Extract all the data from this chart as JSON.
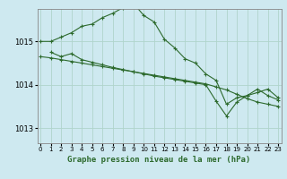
{
  "title": "Graphe pression niveau de la mer (hPa)",
  "bg_color": "#cee9f0",
  "grid_color": "#b0d4cc",
  "line_color": "#2d6a2d",
  "x_ticks": [
    0,
    1,
    2,
    3,
    4,
    5,
    6,
    7,
    8,
    9,
    10,
    11,
    12,
    13,
    14,
    15,
    16,
    17,
    18,
    19,
    20,
    21,
    22,
    23
  ],
  "y_ticks": [
    1013,
    1014,
    1015
  ],
  "ylim": [
    1012.65,
    1015.75
  ],
  "xlim": [
    -0.3,
    23.3
  ],
  "series": [
    {
      "x": [
        0,
        1,
        2,
        3,
        4,
        5,
        6,
        7,
        8,
        9,
        10,
        11,
        12,
        13,
        14,
        15,
        16,
        17,
        18,
        19,
        20,
        21,
        22,
        23
      ],
      "y": [
        1015.0,
        1015.0,
        1015.1,
        1015.2,
        1015.35,
        1015.4,
        1015.55,
        1015.65,
        1015.78,
        1015.88,
        1015.6,
        1015.45,
        1015.05,
        1014.85,
        1014.6,
        1014.5,
        1014.25,
        1014.1,
        1013.55,
        1013.7,
        1013.75,
        1013.9,
        1013.75,
        1013.65
      ]
    },
    {
      "x": [
        0,
        1,
        2,
        3,
        4,
        5,
        6,
        7,
        8,
        9,
        10,
        11,
        12,
        13,
        14,
        15,
        16,
        17,
        18,
        19,
        20,
        21,
        22,
        23
      ],
      "y": [
        1014.65,
        1014.62,
        1014.58,
        1014.54,
        1014.5,
        1014.46,
        1014.42,
        1014.38,
        1014.34,
        1014.3,
        1014.26,
        1014.22,
        1014.18,
        1014.14,
        1014.1,
        1014.06,
        1014.02,
        1013.95,
        1013.88,
        1013.78,
        1013.68,
        1013.6,
        1013.55,
        1013.5
      ]
    },
    {
      "x": [
        1,
        2,
        3,
        4,
        5,
        6,
        7,
        8,
        9,
        10,
        11,
        12,
        13,
        14,
        15,
        16,
        17,
        18,
        19,
        20,
        21,
        22,
        23
      ],
      "y": [
        1014.75,
        1014.65,
        1014.72,
        1014.58,
        1014.52,
        1014.46,
        1014.4,
        1014.35,
        1014.3,
        1014.25,
        1014.2,
        1014.16,
        1014.12,
        1014.08,
        1014.04,
        1014.0,
        1013.62,
        1013.28,
        1013.6,
        1013.75,
        1013.82,
        1013.9,
        1013.7
      ]
    }
  ]
}
